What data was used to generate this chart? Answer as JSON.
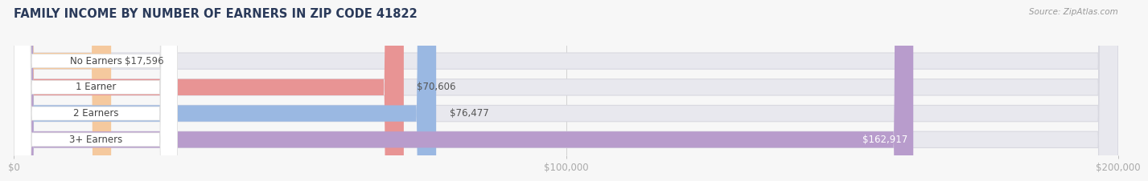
{
  "title": "FAMILY INCOME BY NUMBER OF EARNERS IN ZIP CODE 41822",
  "source": "Source: ZipAtlas.com",
  "categories": [
    "No Earners",
    "1 Earner",
    "2 Earners",
    "3+ Earners"
  ],
  "values": [
    17596,
    70606,
    76477,
    162917
  ],
  "labels": [
    "$17,596",
    "$70,606",
    "$76,477",
    "$162,917"
  ],
  "bar_colors": [
    "#f5c99e",
    "#e89494",
    "#9ab8e2",
    "#b89ccc"
  ],
  "background_color": "#f7f7f7",
  "bar_bg_color": "#e8e8ee",
  "xlim": [
    0,
    200000
  ],
  "xticks": [
    0,
    100000,
    200000
  ],
  "xtick_labels": [
    "$0",
    "$100,000",
    "$200,000"
  ],
  "title_fontsize": 10.5,
  "label_fontsize": 8.5,
  "tick_fontsize": 8.5,
  "bar_height": 0.62,
  "title_color": "#2a3a5a",
  "source_color": "#999999",
  "cat_label_color": "#444444",
  "value_label_outside_color": "#555555",
  "value_label_inside_color": "#ffffff",
  "white_pill_color": "#ffffff",
  "grid_color": "#cccccc",
  "bar_gap": 0.38
}
